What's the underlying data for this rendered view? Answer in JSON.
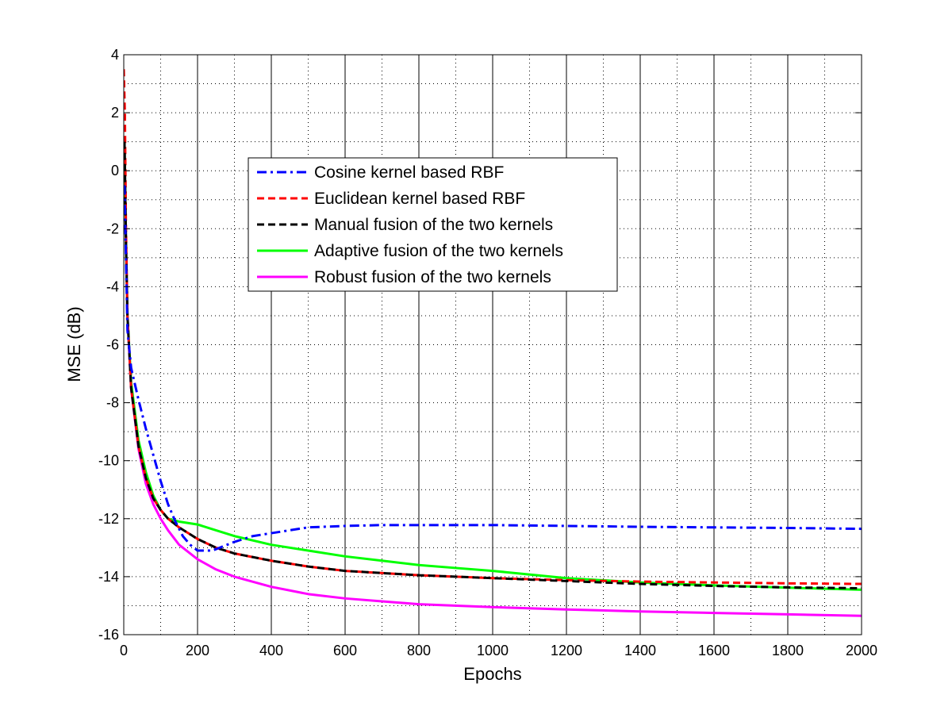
{
  "chart_data": {
    "type": "line",
    "title": "",
    "xlabel": "Epochs",
    "ylabel": "MSE (dB)",
    "xlim": [
      0,
      2000
    ],
    "ylim": [
      -16,
      4
    ],
    "xticks": [
      0,
      200,
      400,
      600,
      800,
      1000,
      1200,
      1400,
      1600,
      1800,
      2000
    ],
    "yticks": [
      -16,
      -14,
      -12,
      -10,
      -8,
      -6,
      -4,
      -2,
      0,
      2,
      4
    ],
    "grid": true,
    "legend_position": "upper-center",
    "series": [
      {
        "name": "Cosine kernel based RBF",
        "color": "#0000ff",
        "style": "dashdot",
        "x": [
          2,
          10,
          20,
          40,
          60,
          80,
          100,
          120,
          140,
          160,
          180,
          200,
          220,
          240,
          260,
          280,
          300,
          350,
          400,
          450,
          500,
          600,
          700,
          800,
          900,
          1000,
          1200,
          1400,
          1600,
          1800,
          2000
        ],
        "y": [
          -0.5,
          -5.5,
          -6.8,
          -7.9,
          -8.9,
          -9.8,
          -10.7,
          -11.5,
          -12.1,
          -12.6,
          -12.9,
          -13.1,
          -13.1,
          -13.1,
          -13.0,
          -12.9,
          -12.8,
          -12.6,
          -12.5,
          -12.4,
          -12.3,
          -12.25,
          -12.22,
          -12.22,
          -12.22,
          -12.22,
          -12.25,
          -12.28,
          -12.3,
          -12.32,
          -12.35
        ]
      },
      {
        "name": "Euclidean kernel based RBF",
        "color": "#ff0000",
        "style": "dashed",
        "x": [
          0,
          3,
          6,
          10,
          20,
          40,
          60,
          80,
          100,
          120,
          150,
          200,
          250,
          300,
          400,
          500,
          600,
          800,
          1000,
          1200,
          1400,
          1600,
          1800,
          2000
        ],
        "y": [
          3.5,
          2.0,
          -2.0,
          -5.0,
          -7.5,
          -9.5,
          -10.6,
          -11.3,
          -11.7,
          -12.0,
          -12.3,
          -12.7,
          -13.0,
          -13.2,
          -13.45,
          -13.65,
          -13.8,
          -13.95,
          -14.05,
          -14.12,
          -14.17,
          -14.2,
          -14.23,
          -14.25
        ]
      },
      {
        "name": "Manual fusion of the two kernels",
        "color": "#000000",
        "style": "dashed",
        "x": [
          2,
          6,
          10,
          20,
          40,
          60,
          80,
          100,
          120,
          150,
          200,
          250,
          300,
          400,
          500,
          600,
          800,
          1000,
          1200,
          1400,
          1600,
          1800,
          2000
        ],
        "y": [
          1.0,
          -2.5,
          -5.0,
          -7.5,
          -9.5,
          -10.6,
          -11.3,
          -11.7,
          -12.0,
          -12.3,
          -12.7,
          -13.0,
          -13.2,
          -13.45,
          -13.65,
          -13.8,
          -13.95,
          -14.05,
          -14.15,
          -14.25,
          -14.32,
          -14.37,
          -14.4
        ]
      },
      {
        "name": "Adaptive fusion of the two kernels",
        "color": "#00ff00",
        "style": "solid",
        "x": [
          2,
          6,
          10,
          20,
          40,
          60,
          80,
          100,
          120,
          150,
          200,
          250,
          300,
          400,
          500,
          600,
          700,
          800,
          900,
          1000,
          1200,
          1400,
          1600,
          1800,
          2000
        ],
        "y": [
          1.0,
          -2.5,
          -5.0,
          -7.3,
          -9.3,
          -10.4,
          -11.2,
          -11.7,
          -12.0,
          -12.1,
          -12.2,
          -12.4,
          -12.6,
          -12.9,
          -13.1,
          -13.3,
          -13.45,
          -13.6,
          -13.7,
          -13.8,
          -14.05,
          -14.2,
          -14.3,
          -14.38,
          -14.45
        ]
      },
      {
        "name": "Robust fusion of the two kernels",
        "color": "#ff00ff",
        "style": "solid",
        "x": [
          2,
          6,
          10,
          20,
          40,
          60,
          80,
          100,
          120,
          150,
          200,
          250,
          300,
          400,
          500,
          600,
          700,
          800,
          1000,
          1200,
          1400,
          1600,
          1800,
          2000
        ],
        "y": [
          1.0,
          -2.5,
          -5.0,
          -7.5,
          -9.6,
          -10.8,
          -11.5,
          -12.0,
          -12.4,
          -12.9,
          -13.4,
          -13.75,
          -14.0,
          -14.35,
          -14.6,
          -14.75,
          -14.85,
          -14.95,
          -15.05,
          -15.13,
          -15.2,
          -15.25,
          -15.3,
          -15.35
        ]
      }
    ]
  }
}
